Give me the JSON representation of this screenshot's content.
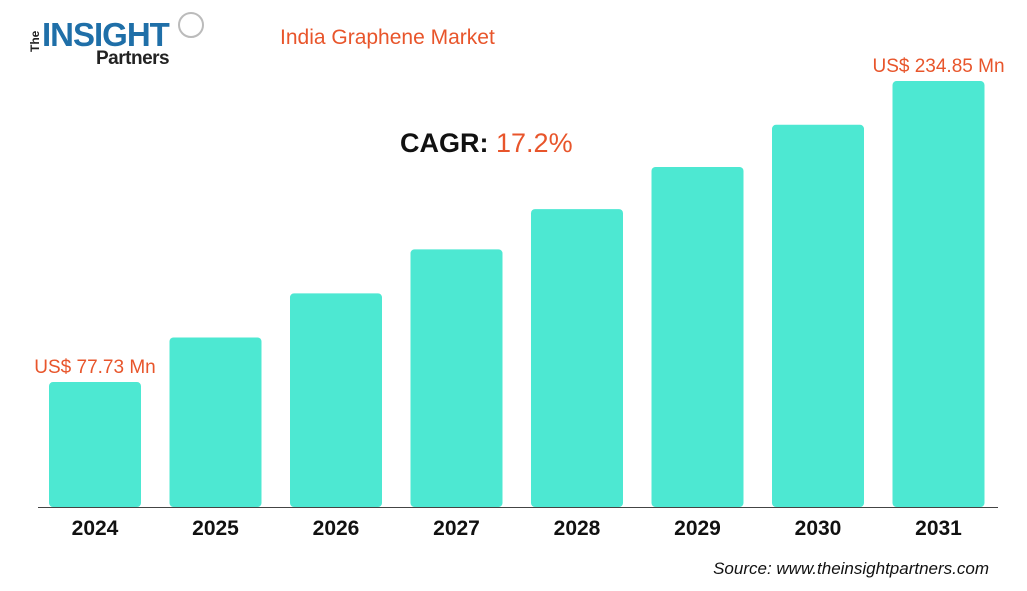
{
  "logo": {
    "the": "The",
    "insight": "INSIGHT",
    "partners": "Partners"
  },
  "title": "India Graphene Market",
  "cagr": {
    "label": "CAGR:",
    "value": "17.2%"
  },
  "source": "Source: www.theinsightpartners.com",
  "chart_data": {
    "type": "bar",
    "title": "India Graphene Market",
    "categories": [
      "2024",
      "2025",
      "2026",
      "2027",
      "2028",
      "2029",
      "2030",
      "2031"
    ],
    "values": [
      77.73,
      101,
      124,
      147,
      168,
      190,
      212,
      234.85
    ],
    "data_labels": {
      "0": "US$ 77.73 Mn",
      "7": "US$ 234.85 Mn"
    },
    "unit": "US$ Mn",
    "ylim": [
      12.5,
      250
    ],
    "grid": false,
    "bar_color": "#4de8d2",
    "label_color": "#e8552b"
  }
}
